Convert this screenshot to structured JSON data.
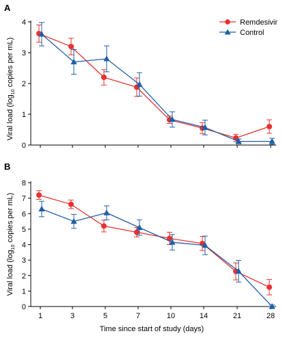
{
  "colors": {
    "remdesivir": "#e8312f",
    "control": "#1f5fa8",
    "axis": "#000000"
  },
  "legend": {
    "remdesivir": "Remdesivir",
    "control": "Control",
    "placement": "top-right"
  },
  "axes": {
    "ylabel_prefix": "Viral load (log",
    "ylabel_sub": "10",
    "ylabel_suffix": " copies per mL)",
    "xlabel": "Time since start of study (days)"
  },
  "chart_data": [
    {
      "type": "line",
      "panel": "A",
      "categories": [
        "1",
        "3",
        "5",
        "7",
        "10",
        "14",
        "21",
        "28"
      ],
      "ylim": [
        0,
        4
      ],
      "yticks": [
        0,
        1,
        2,
        3,
        4
      ],
      "xlabel": "",
      "ylabel": "Viral load (log10 copies per mL)",
      "grid": false,
      "series": [
        {
          "name": "Remdesivir",
          "values": [
            3.62,
            3.2,
            2.2,
            1.88,
            0.82,
            0.55,
            0.23,
            0.6
          ],
          "err": [
            0.28,
            0.27,
            0.25,
            0.3,
            0.12,
            0.18,
            0.12,
            0.22
          ]
        },
        {
          "name": "Control",
          "values": [
            3.6,
            2.7,
            2.8,
            1.97,
            0.83,
            0.57,
            0.12,
            0.12
          ],
          "err": [
            0.38,
            0.4,
            0.42,
            0.38,
            0.25,
            0.24,
            0.08,
            0.1
          ]
        }
      ]
    },
    {
      "type": "line",
      "panel": "B",
      "categories": [
        "1",
        "3",
        "5",
        "7",
        "10",
        "14",
        "21",
        "28"
      ],
      "ylim": [
        0,
        8
      ],
      "yticks": [
        0,
        1,
        2,
        3,
        4,
        5,
        6,
        7,
        8
      ],
      "xlabel": "Time since start of study (days)",
      "ylabel": "Viral load (log10 copies per mL)",
      "grid": false,
      "series": [
        {
          "name": "Remdesivir",
          "values": [
            7.2,
            6.6,
            5.2,
            4.8,
            4.4,
            4.07,
            2.27,
            1.25
          ],
          "err": [
            0.28,
            0.28,
            0.38,
            0.3,
            0.4,
            0.45,
            0.55,
            0.5
          ]
        },
        {
          "name": "Control",
          "values": [
            6.3,
            5.5,
            6.05,
            5.1,
            4.15,
            3.95,
            2.28,
            0.0
          ],
          "err": [
            0.5,
            0.45,
            0.45,
            0.5,
            0.5,
            0.6,
            0.7,
            0.1
          ]
        }
      ]
    }
  ]
}
